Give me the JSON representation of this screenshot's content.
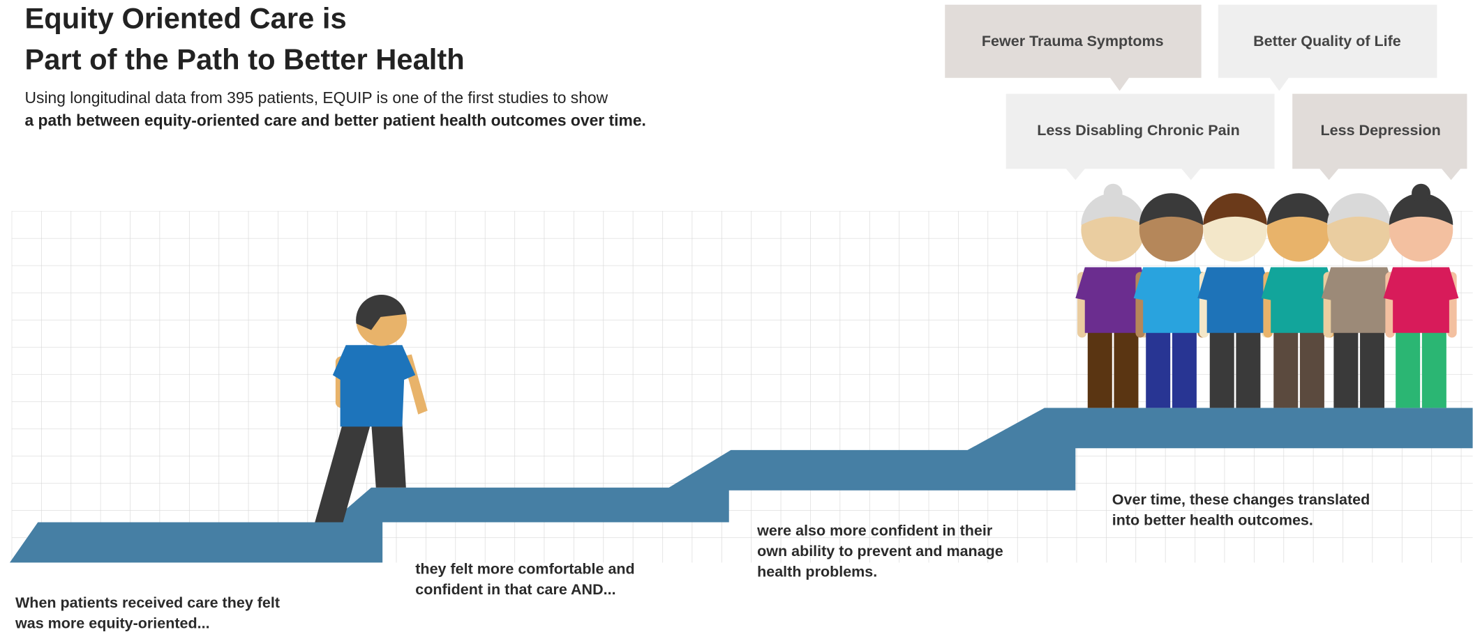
{
  "header": {
    "title": [
      "Equity Oriented Care is",
      "Part of the Path to Better Health"
    ],
    "subtitle": [
      "Using longitudinal data from 395 patients, EQUIP is one of the first studies to show",
      "a path between equity-oriented care and better patient health outcomes over time."
    ]
  },
  "outcomes": [
    "Fewer Trauma Symptoms",
    "Better Quality of Life",
    "Less Disabling Chronic Pain",
    "Less Depression"
  ],
  "steps": [
    [
      "When patients received care they felt",
      "was more equity-oriented..."
    ],
    [
      "they felt more comfortable and",
      "confident in that care AND..."
    ],
    [
      "were also more confident in their",
      "own ability to prevent and manage",
      "health problems."
    ],
    [
      "Over time, these changes translated",
      "into better health outcomes."
    ]
  ]
}
